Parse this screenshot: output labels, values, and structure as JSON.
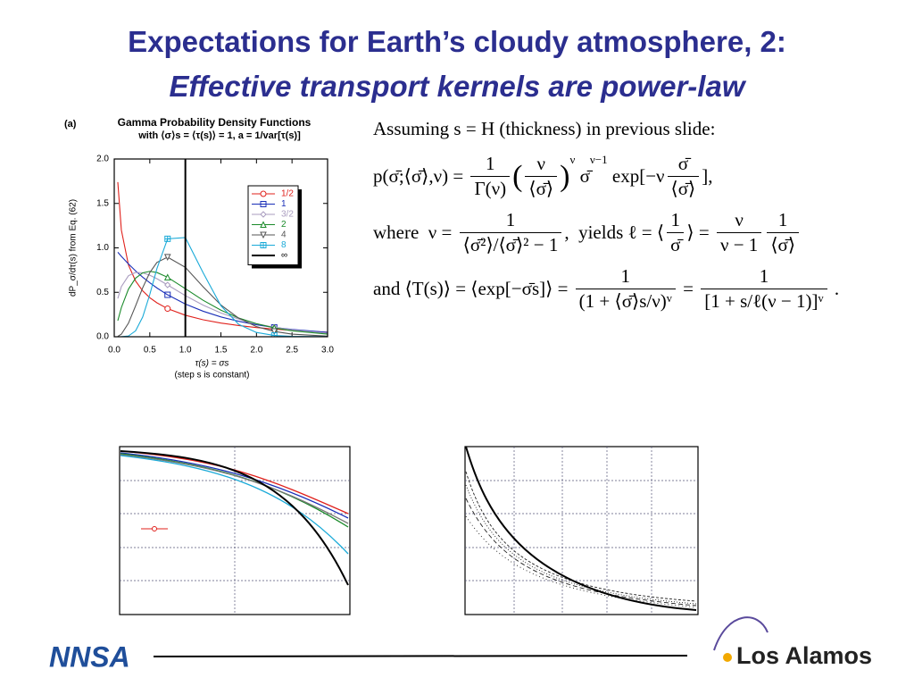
{
  "title": {
    "line1": "Expectations for Earth’s cloudy atmosphere, 2:",
    "line2": "Effective transport kernels are power-law"
  },
  "chart_data": {
    "type": "line",
    "panel_label": "(a)",
    "title": "Gamma Probability Density Functions",
    "subtitle": "with ⟨σ⟩s = ⟨τ(s)⟩ = 1, a = 1/var[τ(s)]",
    "y_label": "dP_σ/dτ(s) from Eq. (62)",
    "x_label": "τ(s) = σs",
    "x_note": "(step s is constant)",
    "x": [
      0.05,
      0.1,
      0.2,
      0.3,
      0.4,
      0.5,
      0.6,
      0.75,
      1.0,
      1.25,
      1.5,
      1.75,
      2.0,
      2.25,
      2.5,
      3.0
    ],
    "series": [
      {
        "name": "1/2",
        "color": "#e0201b",
        "values": [
          1.74,
          1.2,
          0.807,
          0.627,
          0.516,
          0.439,
          0.382,
          0.316,
          0.242,
          0.191,
          0.154,
          0.126,
          0.104,
          0.0865,
          0.0723,
          0.0514
        ]
      },
      {
        "name": "1",
        "color": "#1a2fb8",
        "values": [
          0.951,
          0.905,
          0.819,
          0.741,
          0.67,
          0.607,
          0.549,
          0.472,
          0.368,
          0.287,
          0.223,
          0.174,
          0.135,
          0.105,
          0.082,
          0.05
        ]
      },
      {
        "name": "3/2",
        "color": "#a99cbf",
        "values": [
          0.43,
          0.564,
          0.687,
          0.724,
          0.72,
          0.692,
          0.653,
          0.583,
          0.463,
          0.356,
          0.268,
          0.199,
          0.146,
          0.106,
          0.077,
          0.04
        ]
      },
      {
        "name": "2",
        "color": "#1a8a2a",
        "values": [
          0.181,
          0.328,
          0.536,
          0.659,
          0.719,
          0.736,
          0.723,
          0.669,
          0.541,
          0.41,
          0.299,
          0.211,
          0.147,
          0.1,
          0.067,
          0.03
        ]
      },
      {
        "name": "4",
        "color": "#555555",
        "values": [
          0.0044,
          0.029,
          0.153,
          0.347,
          0.551,
          0.722,
          0.836,
          0.896,
          0.781,
          0.562,
          0.357,
          0.209,
          0.114,
          0.06,
          0.03,
          0.007
        ]
      },
      {
        "name": "8",
        "color": "#1aaad8",
        "values": [
          0,
          0.0002,
          0.0086,
          0.066,
          0.222,
          0.476,
          0.767,
          1.102,
          1.116,
          0.72,
          0.349,
          0.139,
          0.048,
          0.0148,
          0.0042,
          0.0003
        ]
      },
      {
        "name": "∞",
        "color": "#000000",
        "x": [
          1,
          1
        ],
        "values": [
          0,
          2
        ]
      }
    ],
    "xlim": [
      0,
      3
    ],
    "ylim": [
      0,
      2
    ],
    "xticks": [
      {
        "value": 0,
        "label": "0.0"
      },
      {
        "value": 0.5,
        "label": "0.5"
      },
      {
        "value": 1,
        "label": "1.0"
      },
      {
        "value": 1.5,
        "label": "1.5"
      },
      {
        "value": 2,
        "label": "2.0"
      },
      {
        "value": 2.5,
        "label": "2.5"
      },
      {
        "value": 3,
        "label": "3.0"
      }
    ],
    "yticks": [
      {
        "value": 0,
        "label": "0.0"
      },
      {
        "value": 0.5,
        "label": "0.5"
      },
      {
        "value": 1,
        "label": "1.0"
      },
      {
        "value": 1.5,
        "label": "1.5"
      },
      {
        "value": 2,
        "label": "2.0"
      }
    ],
    "legend": "upper right"
  },
  "intro": "Assuming s = H (thickness) in previous slide:",
  "equations": [
    [
      "p(σ̄;⟨σ̄⟩,ν) = ",
      {
        "num": "1",
        "den": "Γ(ν)"
      },
      "(",
      {
        "num": "ν",
        "den": "⟨σ̄⟩"
      },
      ")",
      {
        "sup": "ν"
      },
      " σ̄",
      {
        "sup": "ν−1"
      },
      " exp[−ν",
      {
        "num": "σ̄",
        "den": "⟨σ̄⟩"
      },
      "],"
    ],
    [
      "where  ν = ",
      {
        "num": "1",
        "den": "⟨σ̄²⟩/⟨σ̄⟩² − 1"
      },
      ",  yields ℓ = ⟨",
      {
        "num": "1",
        "den": "σ̄"
      },
      "⟩ = ",
      {
        "num": "ν",
        "den": "ν − 1"
      },
      {
        "num": "1",
        "den": "⟨σ̄⟩"
      }
    ],
    [
      "and ⟨T(s)⟩ = ⟨exp[−σ̄s]⟩ = ",
      {
        "num": "1",
        "den": "(1 + ⟨σ̄⟩s/ν)ᵛ"
      },
      " = ",
      {
        "num": "1",
        "den": "[1 + s/ℓ(ν − 1)]ᵛ"
      },
      " ."
    ]
  ],
  "logos": {
    "left": "NNSA",
    "right": "Los Alamos"
  }
}
